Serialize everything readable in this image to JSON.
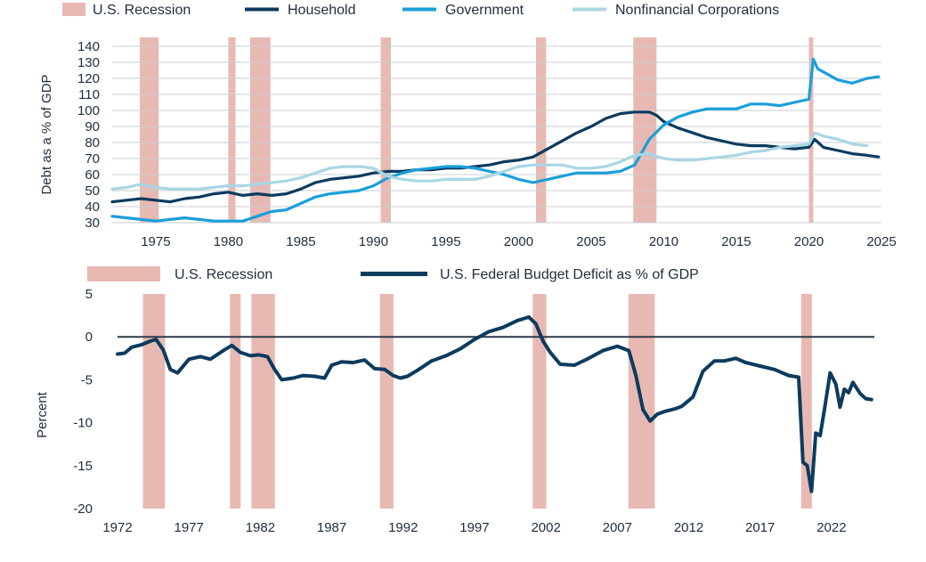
{
  "chart_data": [
    {
      "type": "line",
      "ylabel": "Debt as a % of GDP",
      "ylim": [
        30,
        140
      ],
      "yticks": [
        30,
        40,
        50,
        60,
        70,
        80,
        90,
        100,
        110,
        120,
        130,
        140
      ],
      "xlim": [
        1972,
        2025
      ],
      "xticks": [
        1975,
        1980,
        1985,
        1990,
        1995,
        2000,
        2005,
        2010,
        2015,
        2020,
        2025
      ],
      "grid": true,
      "legend_position": "top",
      "legend": [
        "U.S. Recession",
        "Household",
        "Government",
        "Nonfinancial Corporations"
      ],
      "recessions": [
        [
          1973.9,
          1975.2
        ],
        [
          1980.0,
          1980.5
        ],
        [
          1981.5,
          1982.9
        ],
        [
          1990.5,
          1991.2
        ],
        [
          2001.2,
          2001.9
        ],
        [
          2007.9,
          2009.5
        ],
        [
          2020.0,
          2020.3
        ]
      ],
      "recession_color": "#e8b9b3",
      "series": [
        {
          "name": "Household",
          "color": "#0c3b5e",
          "x": [
            1972,
            1973,
            1974,
            1975,
            1976,
            1977,
            1978,
            1979,
            1980,
            1981,
            1982,
            1983,
            1984,
            1985,
            1986,
            1987,
            1988,
            1989,
            1990,
            1991,
            1992,
            1993,
            1994,
            1995,
            1996,
            1997,
            1998,
            1999,
            2000,
            2001,
            2002,
            2003,
            2004,
            2005,
            2006,
            2007,
            2008,
            2009,
            2009.5,
            2010,
            2011,
            2012,
            2013,
            2014,
            2015,
            2016,
            2017,
            2018,
            2019,
            2020,
            2020.4,
            2021,
            2022,
            2023,
            2024,
            2024.8
          ],
          "values": [
            43,
            44,
            45,
            44,
            43,
            45,
            46,
            48,
            49,
            47,
            48,
            47,
            48,
            51,
            55,
            57,
            58,
            59,
            61,
            62,
            62,
            63,
            63,
            64,
            64,
            65,
            66,
            68,
            69,
            71,
            76,
            81,
            86,
            90,
            95,
            98,
            99,
            99,
            97,
            93,
            89,
            86,
            83,
            81,
            79,
            78,
            78,
            77,
            76,
            77,
            82,
            77,
            75,
            73,
            72,
            71
          ]
        },
        {
          "name": "Government",
          "color": "#1a9fd9",
          "x": [
            1972,
            1973,
            1974,
            1975,
            1976,
            1977,
            1978,
            1979,
            1980,
            1981,
            1982,
            1983,
            1984,
            1985,
            1986,
            1987,
            1988,
            1989,
            1990,
            1991,
            1992,
            1993,
            1994,
            1995,
            1996,
            1997,
            1998,
            1999,
            2000,
            2001,
            2002,
            2003,
            2004,
            2005,
            2006,
            2007,
            2008,
            2009,
            2010,
            2011,
            2012,
            2013,
            2014,
            2015,
            2016,
            2017,
            2018,
            2019,
            2020,
            2020.3,
            2020.6,
            2021,
            2022,
            2023,
            2024,
            2024.8
          ],
          "values": [
            34,
            33,
            32,
            31,
            32,
            33,
            32,
            31,
            31,
            31,
            34,
            37,
            38,
            42,
            46,
            48,
            49,
            50,
            53,
            58,
            61,
            63,
            64,
            65,
            65,
            64,
            62,
            60,
            57,
            55,
            57,
            59,
            61,
            61,
            61,
            62,
            66,
            82,
            91,
            96,
            99,
            101,
            101,
            101,
            104,
            104,
            103,
            105,
            107,
            132,
            126,
            124,
            119,
            117,
            120,
            121
          ]
        },
        {
          "name": "Nonfinancial Corporations",
          "color": "#a9d6e5",
          "x": [
            1972,
            1973,
            1974,
            1975,
            1976,
            1977,
            1978,
            1979,
            1980,
            1981,
            1982,
            1983,
            1984,
            1985,
            1986,
            1987,
            1988,
            1989,
            1990,
            1991,
            1992,
            1993,
            1994,
            1995,
            1996,
            1997,
            1998,
            1999,
            2000,
            2001,
            2002,
            2003,
            2004,
            2005,
            2006,
            2007,
            2008,
            2009,
            2010,
            2011,
            2012,
            2013,
            2014,
            2015,
            2016,
            2017,
            2018,
            2019,
            2020,
            2020.4,
            2021,
            2022,
            2023,
            2024
          ],
          "values": [
            51,
            52,
            54,
            52,
            51,
            51,
            51,
            52,
            53,
            53,
            54,
            55,
            56,
            58,
            61,
            64,
            65,
            65,
            64,
            59,
            57,
            56,
            56,
            57,
            57,
            57,
            59,
            62,
            65,
            66,
            66,
            66,
            64,
            64,
            65,
            68,
            72,
            73,
            70,
            69,
            69,
            70,
            71,
            72,
            74,
            75,
            77,
            78,
            79,
            86,
            84,
            82,
            79,
            78
          ]
        }
      ]
    },
    {
      "type": "line",
      "ylabel": "Percent",
      "ylim": [
        -20,
        5
      ],
      "yticks": [
        5,
        0,
        -5,
        -10,
        -15,
        -20
      ],
      "xlim": [
        1972,
        2025
      ],
      "xticks": [
        1972,
        1977,
        1982,
        1987,
        1992,
        1997,
        2002,
        2007,
        2012,
        2017,
        2022
      ],
      "grid": false,
      "legend_position": "top",
      "legend": [
        "U.S. Recession",
        "U.S. Federal Budget Deficit as % of GDP"
      ],
      "recessions": [
        [
          1973.9,
          1975.2
        ],
        [
          1980.0,
          1980.5
        ],
        [
          1981.5,
          1982.9
        ],
        [
          1990.5,
          1991.2
        ],
        [
          2001.2,
          2001.9
        ],
        [
          2007.9,
          2009.5
        ],
        [
          2020.0,
          2020.3
        ]
      ],
      "recession_color": "#e8b9b3",
      "series": [
        {
          "name": "U.S. Federal Budget Deficit as % of GDP",
          "color": "#0c3b5e",
          "x": [
            1972,
            1972.5,
            1973,
            1973.7,
            1974.3,
            1974.7,
            1975.2,
            1975.7,
            1976.2,
            1977,
            1977.8,
            1978.5,
            1979.5,
            1980,
            1980.6,
            1981.3,
            1981.9,
            1982.5,
            1983,
            1983.5,
            1984.3,
            1985,
            1985.8,
            1986.5,
            1987,
            1987.7,
            1988.5,
            1989.3,
            1990,
            1990.7,
            1991.3,
            1991.8,
            1992.3,
            1993,
            1994,
            1995,
            1996,
            1997,
            1998,
            1999,
            2000,
            2000.8,
            2001.3,
            2001.8,
            2002.3,
            2003,
            2004,
            2005,
            2006,
            2007,
            2007.8,
            2008.3,
            2008.8,
            2009.3,
            2009.8,
            2010.3,
            2011,
            2011.5,
            2012.3,
            2013,
            2013.8,
            2014.5,
            2015.3,
            2016,
            2017,
            2018,
            2019,
            2019.7,
            2020,
            2020.3,
            2020.6,
            2020.9,
            2021.2,
            2021.5,
            2021.9,
            2022.3,
            2022.6,
            2022.9,
            2023.2,
            2023.5,
            2024,
            2024.4,
            2024.8
          ],
          "values": [
            -2.0,
            -1.9,
            -1.2,
            -0.9,
            -0.5,
            -0.3,
            -1.5,
            -3.8,
            -4.2,
            -2.6,
            -2.3,
            -2.6,
            -1.5,
            -1.0,
            -1.8,
            -2.2,
            -2.1,
            -2.3,
            -3.8,
            -5.0,
            -4.8,
            -4.5,
            -4.6,
            -4.8,
            -3.3,
            -2.9,
            -3.0,
            -2.7,
            -3.7,
            -3.8,
            -4.5,
            -4.8,
            -4.6,
            -3.9,
            -2.8,
            -2.2,
            -1.4,
            -0.3,
            0.6,
            1.1,
            1.9,
            2.3,
            1.5,
            -0.5,
            -1.8,
            -3.2,
            -3.3,
            -2.5,
            -1.6,
            -1.1,
            -1.6,
            -4.5,
            -8.5,
            -9.8,
            -9.0,
            -8.7,
            -8.4,
            -8.1,
            -7.0,
            -4.0,
            -2.8,
            -2.8,
            -2.5,
            -3.0,
            -3.4,
            -3.8,
            -4.5,
            -4.7,
            -14.6,
            -15.0,
            -18.0,
            -11.2,
            -11.5,
            -8.5,
            -4.2,
            -5.5,
            -8.2,
            -6.1,
            -6.5,
            -5.3,
            -6.6,
            -7.2,
            -7.3
          ]
        }
      ]
    }
  ]
}
